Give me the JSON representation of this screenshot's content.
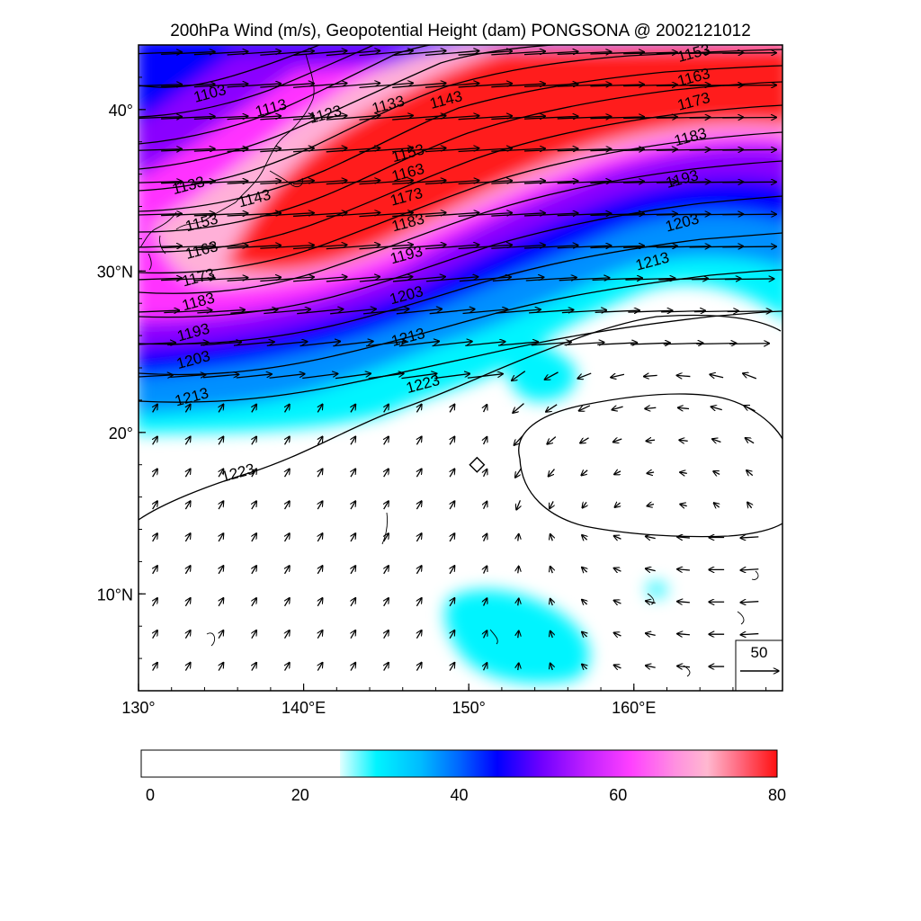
{
  "title": "200hPa Wind (m/s), Geopotential Height (dam) PONGSONA @ 2002121012",
  "map": {
    "lon_range": [
      130,
      169
    ],
    "lat_range": [
      4,
      44
    ],
    "lon_ticks": [
      {
        "value": 130,
        "label": "130°"
      },
      {
        "value": 140,
        "label": "140°E"
      },
      {
        "value": 150,
        "label": "150°"
      },
      {
        "value": 160,
        "label": "160°E"
      }
    ],
    "lat_ticks": [
      {
        "value": 10,
        "label": "10°N"
      },
      {
        "value": 20,
        "label": "20°"
      },
      {
        "value": 30,
        "label": "30°N"
      },
      {
        "value": 40,
        "label": "40°"
      }
    ],
    "storm_marker": {
      "name": "PONGSONA",
      "lon": 150.5,
      "lat": 18
    }
  },
  "contour_labels": [
    {
      "text": "1103",
      "lon": 134.4,
      "lat": 40.7
    },
    {
      "text": "1113",
      "lon": 138.1,
      "lat": 39.8
    },
    {
      "text": "1123",
      "lon": 141.4,
      "lat": 39.4
    },
    {
      "text": "1133",
      "lon": 145.2,
      "lat": 40.0
    },
    {
      "text": "1143",
      "lon": 148.7,
      "lat": 40.3
    },
    {
      "text": "1153",
      "lon": 163.7,
      "lat": 43.2
    },
    {
      "text": "1163",
      "lon": 163.7,
      "lat": 41.7
    },
    {
      "text": "1173",
      "lon": 163.7,
      "lat": 40.2
    },
    {
      "text": "1183",
      "lon": 163.5,
      "lat": 38.0
    },
    {
      "text": "1193",
      "lon": 163.0,
      "lat": 35.4
    },
    {
      "text": "1203",
      "lon": 163.0,
      "lat": 32.7
    },
    {
      "text": "1213",
      "lon": 161.2,
      "lat": 30.3
    },
    {
      "text": "1133",
      "lon": 133.1,
      "lat": 35.0
    },
    {
      "text": "1143",
      "lon": 137.1,
      "lat": 34.2
    },
    {
      "text": "1153",
      "lon": 146.4,
      "lat": 37.0
    },
    {
      "text": "1163",
      "lon": 146.4,
      "lat": 35.8
    },
    {
      "text": "1173",
      "lon": 146.3,
      "lat": 34.3
    },
    {
      "text": "1183",
      "lon": 146.4,
      "lat": 32.7
    },
    {
      "text": "1193",
      "lon": 146.3,
      "lat": 30.7
    },
    {
      "text": "1203",
      "lon": 146.3,
      "lat": 28.2
    },
    {
      "text": "1213",
      "lon": 146.4,
      "lat": 25.6
    },
    {
      "text": "1223",
      "lon": 147.3,
      "lat": 22.7
    },
    {
      "text": "1153",
      "lon": 133.9,
      "lat": 32.7
    },
    {
      "text": "1163",
      "lon": 133.9,
      "lat": 31.0
    },
    {
      "text": "1173",
      "lon": 133.7,
      "lat": 29.3
    },
    {
      "text": "1183",
      "lon": 133.7,
      "lat": 27.8
    },
    {
      "text": "1193",
      "lon": 133.4,
      "lat": 25.9
    },
    {
      "text": "1203",
      "lon": 133.4,
      "lat": 24.2
    },
    {
      "text": "1213",
      "lon": 133.3,
      "lat": 21.9
    },
    {
      "text": "1223",
      "lon": 136.1,
      "lat": 17.2
    }
  ],
  "colorbar": {
    "ticks": [
      {
        "value": 0,
        "label": "0"
      },
      {
        "value": 20,
        "label": "20"
      },
      {
        "value": 40,
        "label": "40"
      },
      {
        "value": 60,
        "label": "60"
      },
      {
        "value": 80,
        "label": "80"
      }
    ],
    "range": [
      0,
      80
    ],
    "blank_below": 25,
    "colors": {
      "cyan": "#00ffff",
      "blue": "#0000ff",
      "purple": "#9000ff",
      "magenta": "#ff30ff",
      "pink": "#ffb0d8",
      "red": "#ff1a1a"
    }
  },
  "reference_vector": {
    "label": "50",
    "speed": 50
  }
}
